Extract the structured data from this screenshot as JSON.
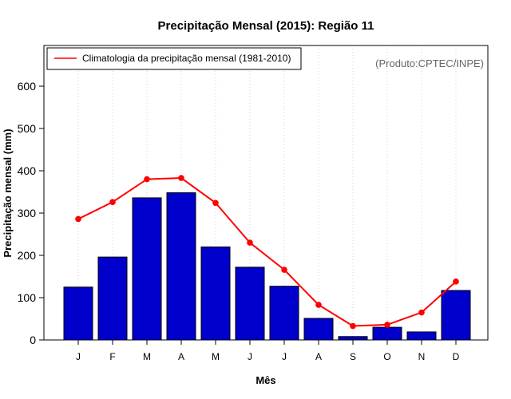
{
  "chart_data": {
    "type": "bar",
    "title": "Precipitação Mensal (2015): Região 11",
    "xlabel": "Mês",
    "ylabel": "Precipitação mensal (mm)",
    "categories": [
      "J",
      "F",
      "M",
      "A",
      "M",
      "J",
      "J",
      "A",
      "S",
      "O",
      "N",
      "D"
    ],
    "ylim": [
      0,
      700
    ],
    "yticks": [
      0,
      100,
      200,
      300,
      400,
      500,
      600
    ],
    "grid": "vertical dotted",
    "legend_position": "top-left",
    "credit": "(Produto:CPTEC/INPE)",
    "series": [
      {
        "name": "Precipitação mensal (2015)",
        "type": "bar",
        "color": "#0000cc",
        "values": [
          125,
          196,
          336,
          348,
          220,
          172,
          127,
          51,
          8,
          30,
          19,
          117
        ]
      },
      {
        "name": "Climatologia da precipitação mensal (1981-2010)",
        "type": "line",
        "color": "#ff0000",
        "values": [
          286,
          326,
          380,
          383,
          324,
          230,
          166,
          83,
          33,
          36,
          65,
          138
        ]
      }
    ]
  }
}
